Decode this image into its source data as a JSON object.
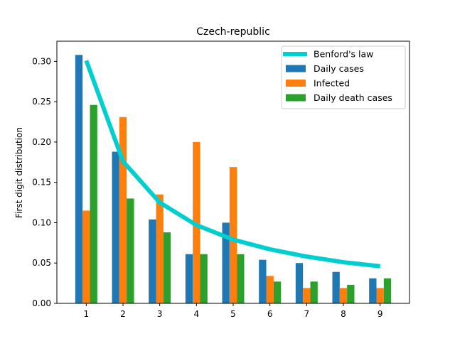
{
  "chart_data": {
    "type": "bar",
    "title": "Czech-republic",
    "xlabel": "",
    "ylabel": "First digit distribution",
    "categories": [
      "1",
      "2",
      "3",
      "4",
      "5",
      "6",
      "7",
      "8",
      "9"
    ],
    "ylim": [
      0,
      0.325
    ],
    "yticks": [
      "0.00",
      "0.05",
      "0.10",
      "0.15",
      "0.20",
      "0.25",
      "0.30"
    ],
    "grid": false,
    "legend_position": "top-right",
    "series": [
      {
        "name": "Daily cases",
        "type": "bar",
        "color": "#1f77b4",
        "values": [
          0.308,
          0.188,
          0.104,
          0.061,
          0.1,
          0.054,
          0.05,
          0.039,
          0.031
        ]
      },
      {
        "name": "Infected",
        "type": "bar",
        "color": "#ff7f0e",
        "values": [
          0.115,
          0.231,
          0.135,
          0.2,
          0.169,
          0.034,
          0.019,
          0.019,
          0.019
        ]
      },
      {
        "name": "Daily death cases",
        "type": "bar",
        "color": "#2ca02c",
        "values": [
          0.246,
          0.13,
          0.088,
          0.061,
          0.061,
          0.027,
          0.027,
          0.023,
          0.031
        ]
      }
    ],
    "line": {
      "name": "Benford's law",
      "type": "line",
      "color": "#00ced1",
      "values": [
        0.301,
        0.176,
        0.125,
        0.097,
        0.079,
        0.067,
        0.058,
        0.051,
        0.046
      ]
    }
  }
}
